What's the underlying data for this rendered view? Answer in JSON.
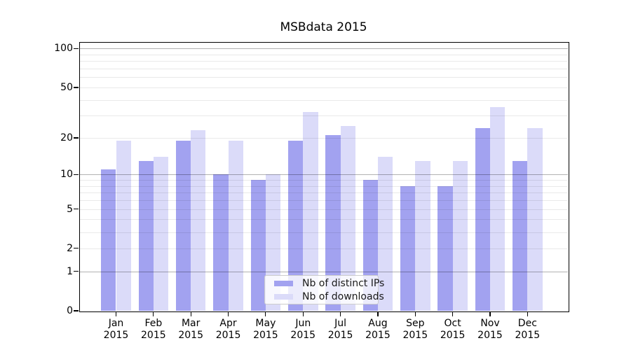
{
  "title": "MSBdata 2015",
  "legend": {
    "items": [
      {
        "label": "Nb of distinct IPs",
        "color": "#a2a2f0"
      },
      {
        "label": "Nb of downloads",
        "color": "#dbdbf9"
      }
    ]
  },
  "y_axis": {
    "tick_labels": [
      "100",
      "50",
      "20",
      "10",
      "5",
      "2",
      "1",
      "0"
    ],
    "tick_values": [
      100,
      50,
      20,
      10,
      5,
      2,
      1,
      0
    ]
  },
  "x_axis": {
    "tick_labels": [
      [
        "Jan",
        "2015"
      ],
      [
        "Feb",
        "2015"
      ],
      [
        "Mar",
        "2015"
      ],
      [
        "Apr",
        "2015"
      ],
      [
        "May",
        "2015"
      ],
      [
        "Jun",
        "2015"
      ],
      [
        "Jul",
        "2015"
      ],
      [
        "Aug",
        "2015"
      ],
      [
        "Sep",
        "2015"
      ],
      [
        "Oct",
        "2015"
      ],
      [
        "Nov",
        "2015"
      ],
      [
        "Dec",
        "2015"
      ]
    ]
  },
  "chart_data": {
    "type": "bar",
    "title": "MSBdata 2015",
    "categories": [
      "Jan 2015",
      "Feb 2015",
      "Mar 2015",
      "Apr 2015",
      "May 2015",
      "Jun 2015",
      "Jul 2015",
      "Aug 2015",
      "Sep 2015",
      "Oct 2015",
      "Nov 2015",
      "Dec 2015"
    ],
    "series": [
      {
        "name": "Nb of distinct IPs",
        "color": "#a2a2f0",
        "values": [
          11,
          13,
          19,
          10,
          9,
          19,
          21,
          9,
          8,
          8,
          24,
          13
        ]
      },
      {
        "name": "Nb of downloads",
        "color": "#dbdbf9",
        "values": [
          19,
          14,
          23,
          19,
          10,
          32,
          25,
          14,
          13,
          13,
          35,
          24
        ]
      }
    ],
    "xlabel": "",
    "ylabel": "",
    "yscale": "log1p",
    "yticks": [
      0,
      1,
      2,
      5,
      10,
      20,
      50,
      100
    ],
    "ylim": [
      0,
      113
    ],
    "grid": {
      "major": [
        1,
        10,
        100
      ],
      "minor": [
        2,
        3,
        4,
        5,
        6,
        7,
        8,
        9,
        20,
        30,
        40,
        50,
        60,
        70,
        80,
        90
      ]
    },
    "legend_position": "lower center"
  }
}
